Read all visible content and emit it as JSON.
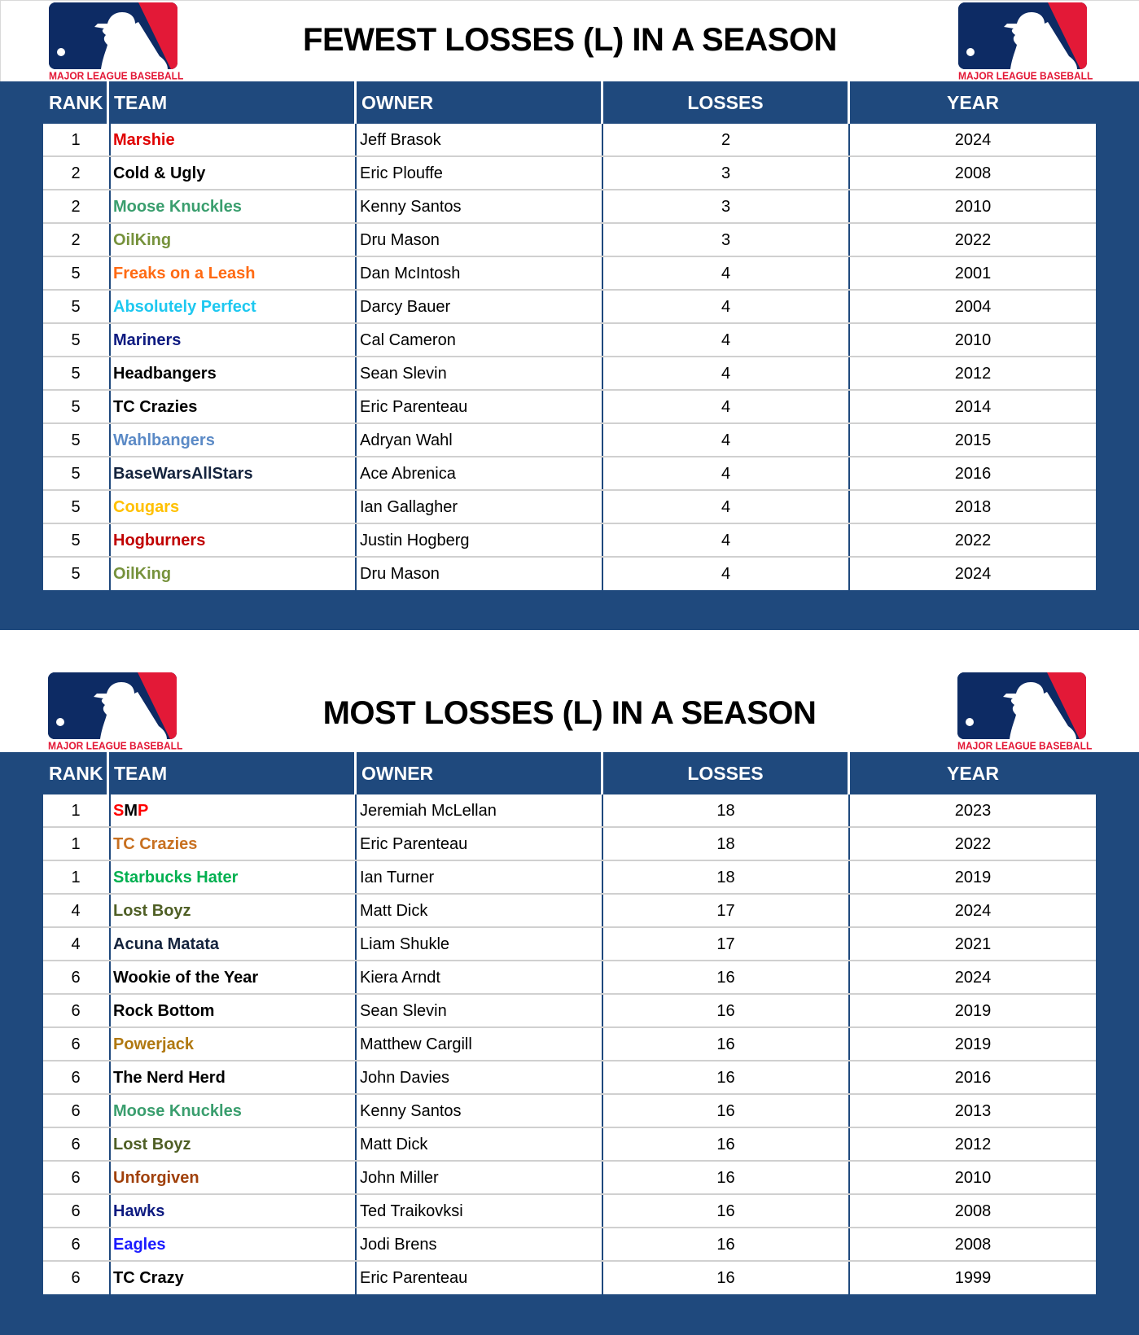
{
  "logo": {
    "wordmark": "MAJOR LEAGUE BASEBALL",
    "colors": {
      "blue": "#0d2b64",
      "red": "#e31937"
    }
  },
  "theme": {
    "panel_blue": "#1f497d",
    "grid_line": "#d0d0d0"
  },
  "columns": {
    "rank": "RANK",
    "team": "TEAM",
    "owner": "OWNER",
    "losses": "LOSSES",
    "year": "YEAR"
  },
  "fewest": {
    "title": "FEWEST LOSSES (L) IN A SEASON",
    "rows": [
      {
        "rank": "1",
        "team": "Marshie",
        "team_color": "#e00000",
        "owner": "Jeff Brasok",
        "losses": "2",
        "year": "2024"
      },
      {
        "rank": "2",
        "team": "Cold & Ugly",
        "team_color": "#000000",
        "owner": "Eric Plouffe",
        "losses": "3",
        "year": "2008"
      },
      {
        "rank": "2",
        "team": "Moose Knuckles",
        "team_color": "#3a9e6e",
        "owner": "Kenny Santos",
        "losses": "3",
        "year": "2010"
      },
      {
        "rank": "2",
        "team": "OilKing",
        "team_color": "#76923c",
        "owner": "Dru Mason",
        "losses": "3",
        "year": "2022"
      },
      {
        "rank": "5",
        "team": "Freaks on a Leash",
        "team_color": "#ff6a13",
        "owner": "Dan McIntosh",
        "losses": "4",
        "year": "2001"
      },
      {
        "rank": "5",
        "team": "Absolutely Perfect",
        "team_color": "#1ec8f0",
        "owner": "Darcy Bauer",
        "losses": "4",
        "year": "2004"
      },
      {
        "rank": "5",
        "team": "Mariners",
        "team_color": "#0d1a80",
        "owner": "Cal Cameron",
        "losses": "4",
        "year": "2010"
      },
      {
        "rank": "5",
        "team": "Headbangers",
        "team_color": "#000000",
        "owner": "Sean Slevin",
        "losses": "4",
        "year": "2012"
      },
      {
        "rank": "5",
        "team": "TC Crazies",
        "team_color": "#000000",
        "owner": "Eric Parenteau",
        "losses": "4",
        "year": "2014"
      },
      {
        "rank": "5",
        "team": "Wahlbangers",
        "team_color": "#5b8ac6",
        "owner": "Adryan Wahl",
        "losses": "4",
        "year": "2015"
      },
      {
        "rank": "5",
        "team": "BaseWarsAllStars",
        "team_color": "#14233d",
        "owner": "Ace Abrenica",
        "losses": "4",
        "year": "2016"
      },
      {
        "rank": "5",
        "team": "Cougars",
        "team_color": "#ffc000",
        "owner": "Ian Gallagher",
        "losses": "4",
        "year": "2018"
      },
      {
        "rank": "5",
        "team": "Hogburners",
        "team_color": "#c00000",
        "owner": "Justin Hogberg",
        "losses": "4",
        "year": "2022"
      },
      {
        "rank": "5",
        "team": "OilKing",
        "team_color": "#76923c",
        "owner": "Dru Mason",
        "losses": "4",
        "year": "2024"
      }
    ]
  },
  "most": {
    "title": "MOST LOSSES (L) IN A SEASON",
    "rows": [
      {
        "rank": "1",
        "team": "SMP",
        "team_color": "#ff0000",
        "owner": "Jeremiah McLellan",
        "losses": "18",
        "year": "2023"
      },
      {
        "rank": "1",
        "team": "TC Crazies",
        "team_color": "#c87020",
        "owner": "Eric Parenteau",
        "losses": "18",
        "year": "2022"
      },
      {
        "rank": "1",
        "team": "Starbucks Hater",
        "team_color": "#00b050",
        "owner": "Ian Turner",
        "losses": "18",
        "year": "2019"
      },
      {
        "rank": "4",
        "team": "Lost Boyz",
        "team_color": "#4f5f25",
        "owner": "Matt Dick",
        "losses": "17",
        "year": "2024"
      },
      {
        "rank": "4",
        "team": "Acuna Matata",
        "team_color": "#14233d",
        "owner": "Liam Shukle",
        "losses": "17",
        "year": "2021"
      },
      {
        "rank": "6",
        "team": "Wookie of the Year",
        "team_color": "#000000",
        "owner": "Kiera Arndt",
        "losses": "16",
        "year": "2024"
      },
      {
        "rank": "6",
        "team": "Rock Bottom",
        "team_color": "#000000",
        "owner": "Sean Slevin",
        "losses": "16",
        "year": "2019"
      },
      {
        "rank": "6",
        "team": "Powerjack",
        "team_color": "#b07810",
        "owner": "Matthew Cargill",
        "losses": "16",
        "year": "2019"
      },
      {
        "rank": "6",
        "team": "The Nerd Herd",
        "team_color": "#000000",
        "owner": "John Davies",
        "losses": "16",
        "year": "2016"
      },
      {
        "rank": "6",
        "team": "Moose Knuckles",
        "team_color": "#3a9e6e",
        "owner": "Kenny Santos",
        "losses": "16",
        "year": "2013"
      },
      {
        "rank": "6",
        "team": "Lost Boyz",
        "team_color": "#4f5f25",
        "owner": "Matt Dick",
        "losses": "16",
        "year": "2012"
      },
      {
        "rank": "6",
        "team": "Unforgiven",
        "team_color": "#a0400a",
        "owner": "John Miller",
        "losses": "16",
        "year": "2010"
      },
      {
        "rank": "6",
        "team": "Hawks",
        "team_color": "#0d1a80",
        "owner": "Ted Traikovksi",
        "losses": "16",
        "year": "2008"
      },
      {
        "rank": "6",
        "team": "Eagles",
        "team_color": "#1a1aff",
        "owner": "Jodi Brens",
        "losses": "16",
        "year": "2008"
      },
      {
        "rank": "6",
        "team": "TC Crazy",
        "team_color": "#000000",
        "owner": "Eric Parenteau",
        "losses": "16",
        "year": "1999"
      }
    ]
  }
}
